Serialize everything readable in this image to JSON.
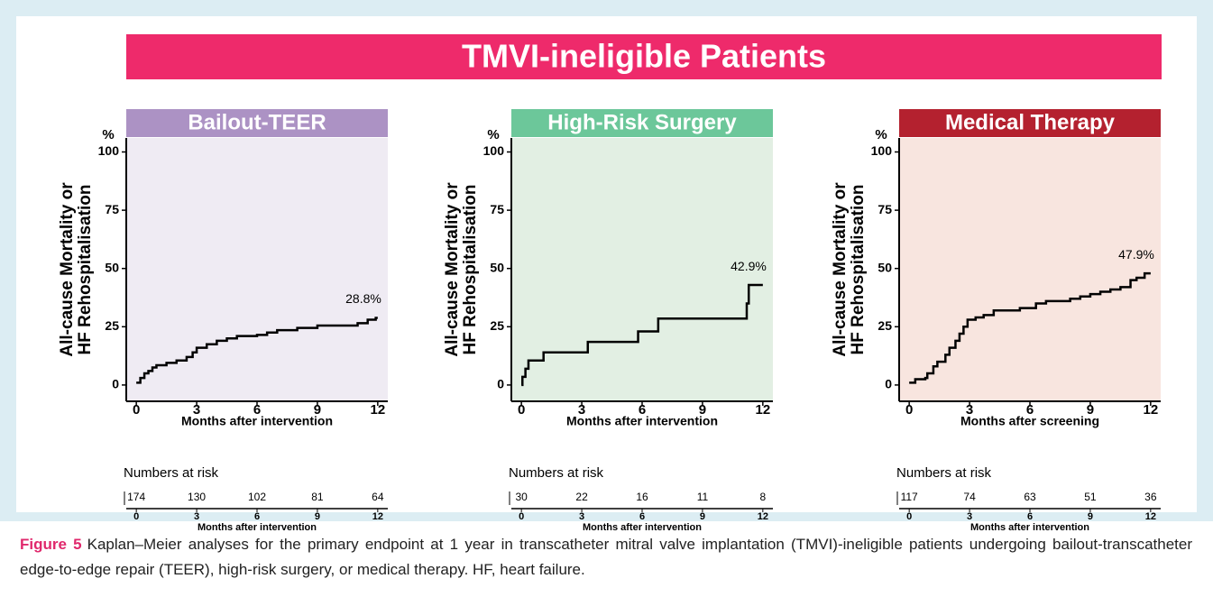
{
  "banner": "TMVI-ineligible Patients",
  "caption": {
    "label": "Figure 5",
    "text": "Kaplan–Meier analyses for the primary endpoint at 1 year in transcatheter mitral valve implantation (TMVI)-ineligible patients undergoing bailout-transcatheter edge-to-edge repair (TEER), high-risk surgery, or medical therapy. HF, heart failure."
  },
  "chart_data": [
    {
      "type": "line",
      "title": "Bailout-TEER",
      "header_color": "#ac92c4",
      "background": "#efebf3",
      "color": "#000000",
      "ylabel": [
        "All-cause Mortality or",
        "HF Rehospitalisation"
      ],
      "yunit": "%",
      "xlabel": "Months after intervention",
      "x": [
        0,
        0.2,
        0.4,
        0.6,
        0.8,
        1.0,
        1.5,
        2.0,
        2.5,
        2.8,
        3.0,
        3.5,
        4.0,
        4.5,
        5.0,
        6.0,
        6.5,
        7.0,
        8.0,
        9.0,
        11.0,
        11.5,
        11.9,
        12
      ],
      "values": [
        1,
        3,
        5,
        6,
        7.5,
        8.5,
        9.5,
        10.5,
        12,
        14,
        16,
        17.5,
        19,
        20,
        21,
        21.5,
        22.5,
        23.5,
        24.5,
        25.5,
        26.5,
        28,
        28.8,
        28.8
      ],
      "annotation": "28.8%",
      "xlim": [
        -0.5,
        12.5
      ],
      "ylim": [
        -7,
        106
      ],
      "xticks": [
        0,
        3,
        6,
        9,
        12
      ],
      "yticks": [
        0,
        25,
        50,
        75,
        100
      ],
      "risk": {
        "title": "Numbers at risk",
        "values": [
          174,
          130,
          102,
          81,
          64
        ],
        "xticks": [
          0,
          3,
          6,
          9,
          12
        ],
        "xlabel": "Months after intervention"
      }
    },
    {
      "type": "line",
      "title": "High-Risk Surgery",
      "header_color": "#6cc79a",
      "background": "#e2efe3",
      "color": "#000000",
      "ylabel": [
        "All-cause Mortality or",
        "HF Rehospitalisation"
      ],
      "yunit": "%",
      "xlabel": "Months after intervention",
      "x": [
        0,
        0.05,
        0.2,
        0.35,
        1.1,
        3.3,
        5.8,
        6.8,
        11.2,
        11.3,
        12
      ],
      "values": [
        0,
        3.5,
        7,
        10.5,
        14,
        18.5,
        23,
        28.5,
        35,
        42.9,
        42.9
      ],
      "annotation": "42.9%",
      "xlim": [
        -0.5,
        12.5
      ],
      "ylim": [
        -7,
        106
      ],
      "xticks": [
        0,
        3,
        6,
        9,
        12
      ],
      "yticks": [
        0,
        25,
        50,
        75,
        100
      ],
      "risk": {
        "title": "Numbers at risk",
        "values": [
          30,
          22,
          16,
          11,
          8
        ],
        "xticks": [
          0,
          3,
          6,
          9,
          12
        ],
        "xlabel": "Months after intervention"
      }
    },
    {
      "type": "line",
      "title": "Medical Therapy",
      "header_color": "#b4212f",
      "background": "#f8e5df",
      "color": "#000000",
      "ylabel": [
        "All-cause Mortality or",
        "HF Rehospitalisation"
      ],
      "yunit": "%",
      "xlabel": "Months after screening",
      "x": [
        0,
        0.3,
        0.8,
        0.9,
        1.2,
        1.4,
        1.8,
        2.0,
        2.3,
        2.5,
        2.7,
        2.9,
        3.3,
        3.7,
        4.2,
        5.5,
        6.3,
        6.8,
        8.0,
        8.5,
        9.0,
        9.5,
        10.0,
        10.5,
        11.0,
        11.3,
        11.7,
        12
      ],
      "values": [
        1,
        2.5,
        3,
        5,
        8,
        10,
        13,
        16,
        19,
        22,
        25,
        28,
        29,
        30,
        32,
        33,
        35,
        36,
        37,
        38,
        39,
        40,
        41,
        42,
        45,
        46,
        47.9,
        47.9
      ],
      "annotation": "47.9%",
      "xlim": [
        -0.5,
        12.5
      ],
      "ylim": [
        -7,
        106
      ],
      "xticks": [
        0,
        3,
        6,
        9,
        12
      ],
      "yticks": [
        0,
        25,
        50,
        75,
        100
      ],
      "risk": {
        "title": "Numbers at risk",
        "values": [
          117,
          74,
          63,
          51,
          36
        ],
        "xticks": [
          0,
          3,
          6,
          9,
          12
        ],
        "xlabel": "Months after intervention"
      }
    }
  ]
}
